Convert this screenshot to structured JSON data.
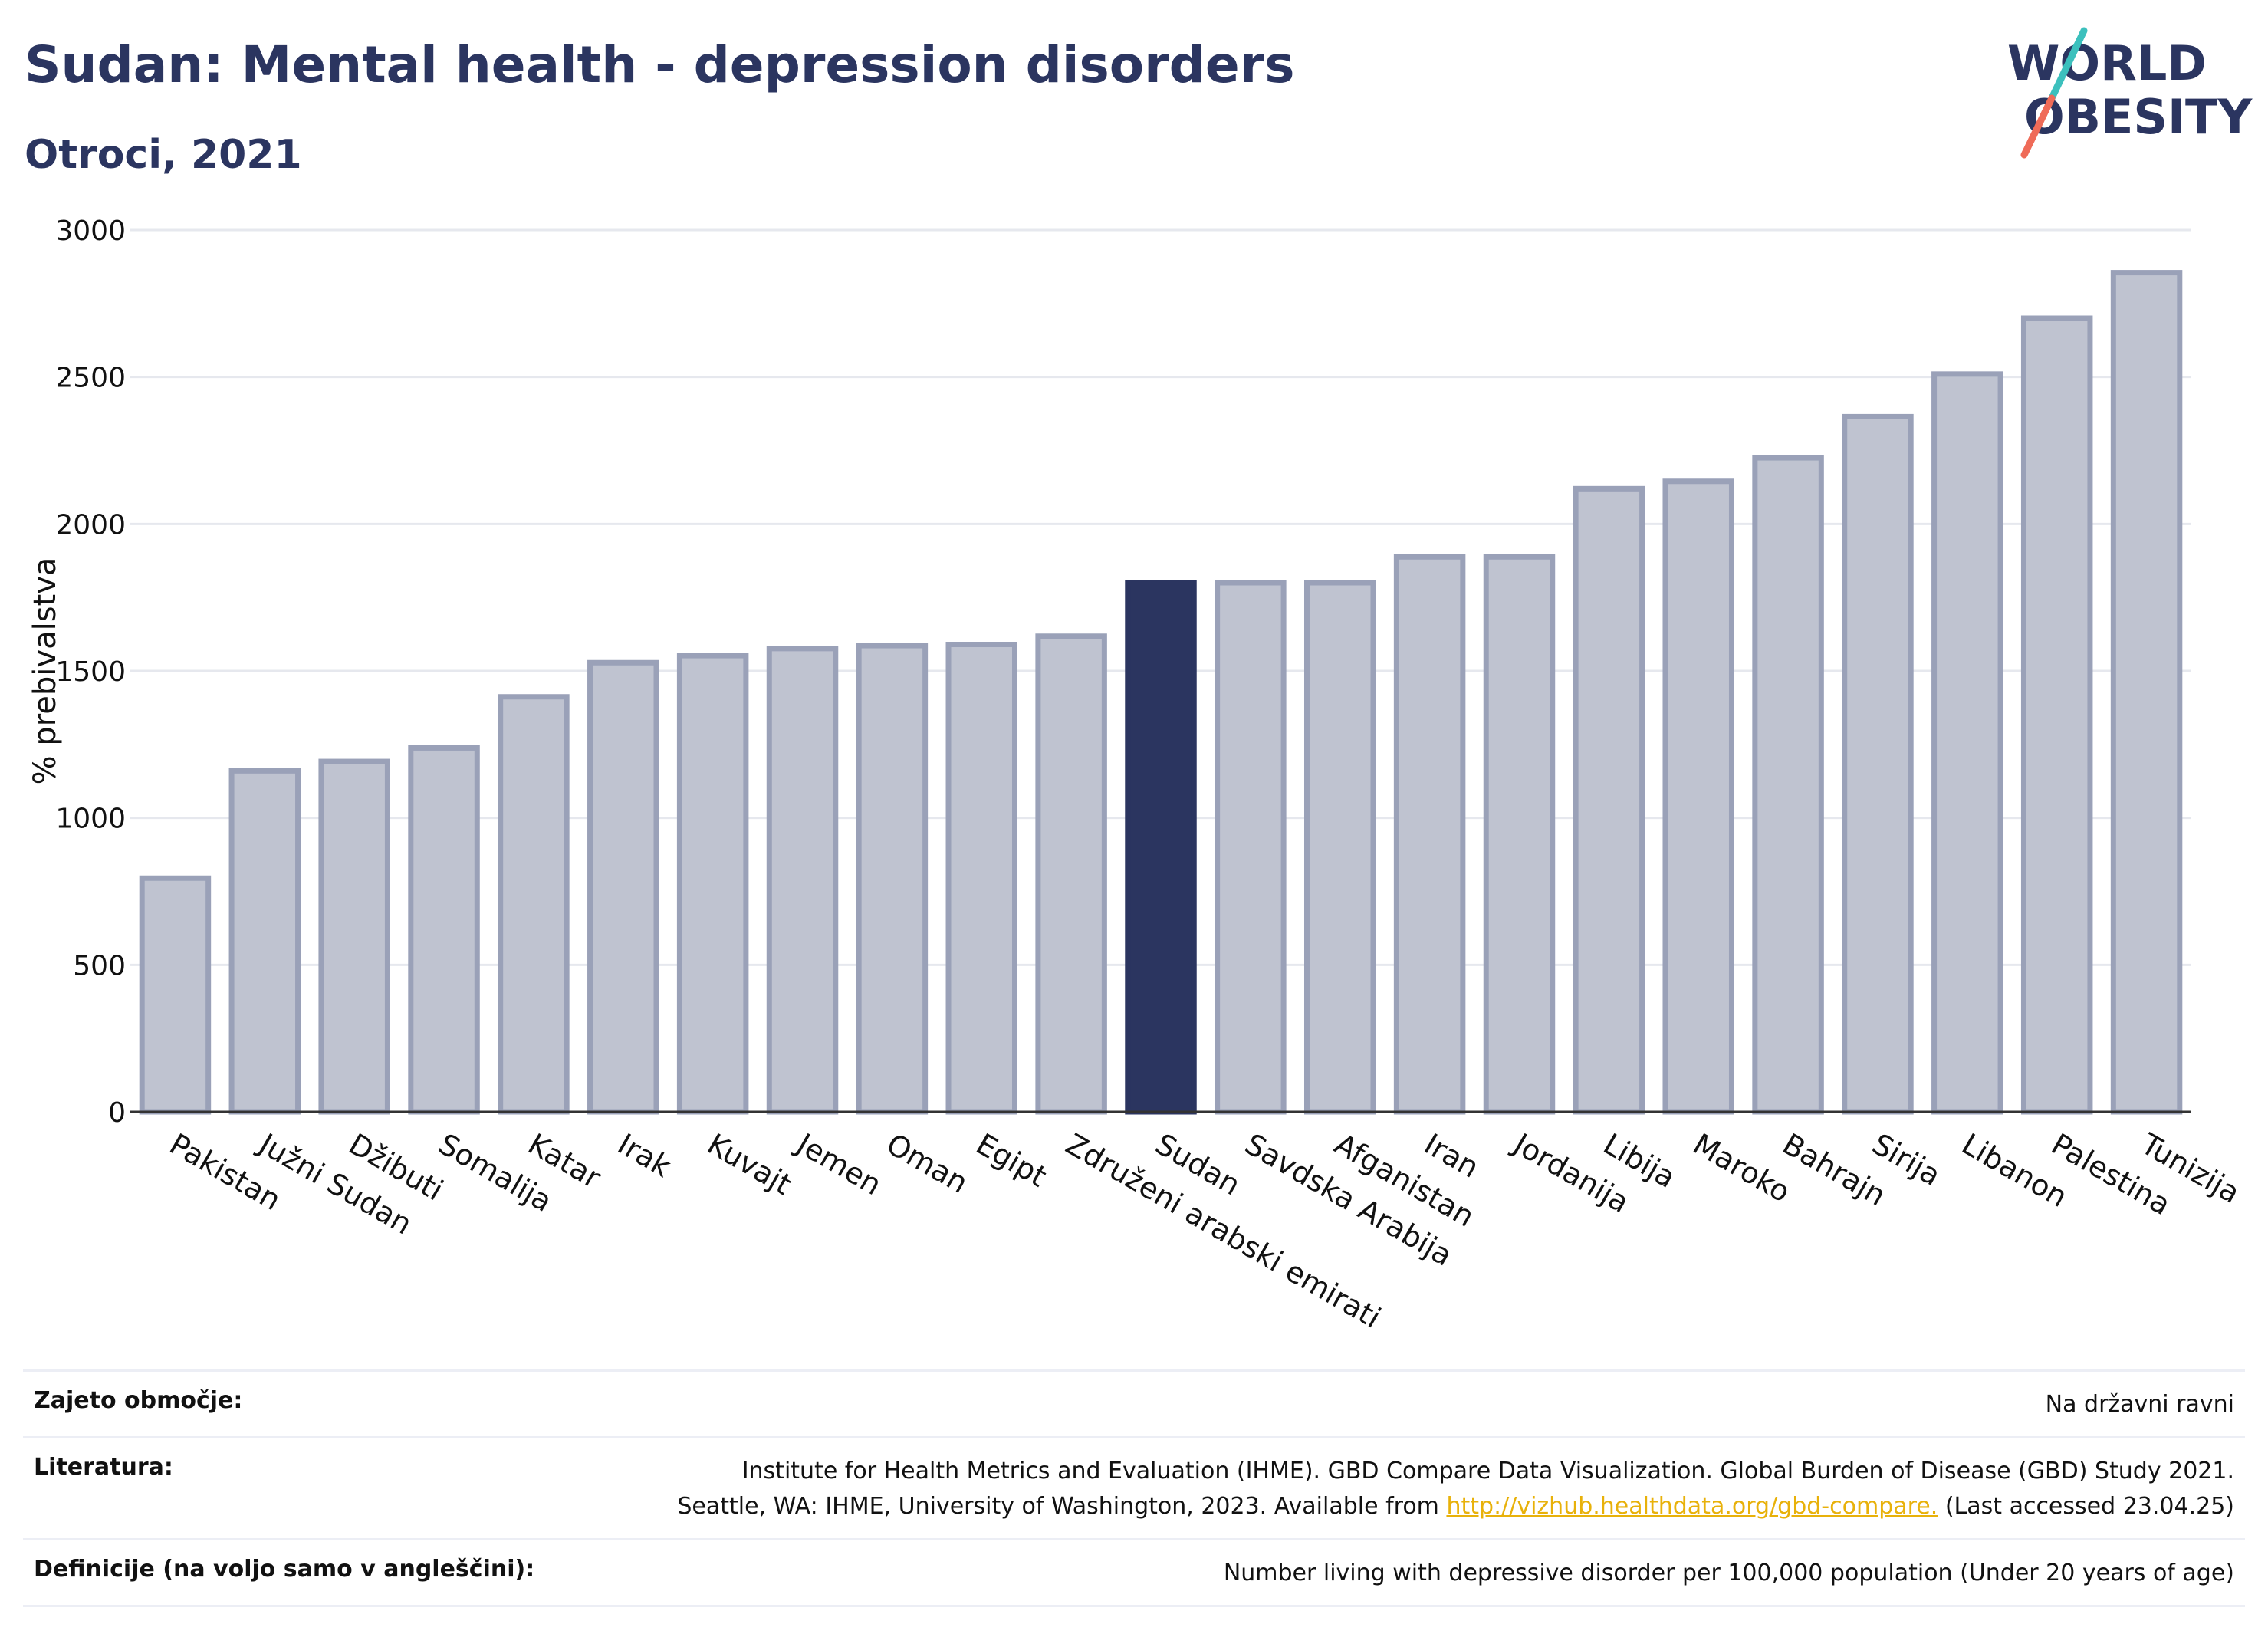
{
  "header": {
    "title": "Sudan: Mental health - depression disorders",
    "subtitle": "Otroci, 2021"
  },
  "logo": {
    "line1": "WORLD",
    "line2": "OBESITY",
    "colors": {
      "text": "#2b3560",
      "stroke_top": "#3cc0bd",
      "stroke_bottom": "#ef6b58"
    }
  },
  "colors": {
    "bar": "#bfc3d0",
    "bar_border": "#9aa1b8",
    "highlight": "#2b3560",
    "grid": "#e6e8ee",
    "axis": "#333333"
  },
  "chart_data": {
    "type": "bar",
    "title": "Sudan: Mental health - depression disorders",
    "subtitle": "Otroci, 2021",
    "ylabel": "% prebivalstva",
    "xlabel": "",
    "ylim": [
      0,
      3000
    ],
    "yticks": [
      0,
      500,
      1000,
      1500,
      2000,
      2500,
      3000
    ],
    "grid": true,
    "highlight": "Sudan",
    "categories": [
      "Pakistan",
      "Južni Sudan",
      "Džibuti",
      "Somalija",
      "Katar",
      "Irak",
      "Kuvajt",
      "Jemen",
      "Oman",
      "Egipt",
      "Združeni arabski emirati",
      "Sudan",
      "Savdska Arabija",
      "Afganistan",
      "Iran",
      "Jordanija",
      "Libija",
      "Maroko",
      "Bahrajn",
      "Sirija",
      "Libanon",
      "Palestina",
      "Tunizija"
    ],
    "values": [
      795,
      1160,
      1192,
      1238,
      1412,
      1528,
      1552,
      1576,
      1586,
      1590,
      1618,
      1800,
      1800,
      1800,
      1888,
      1888,
      2120,
      2145,
      2225,
      2365,
      2510,
      2700,
      2855
    ]
  },
  "info": {
    "rows": [
      {
        "key": "Zajeto območje:",
        "value": "Na državni ravni"
      },
      {
        "key": "Literatura:",
        "value_line1": "Institute for Health Metrics and Evaluation (IHME). GBD Compare Data Visualization. Global Burden of Disease (GBD) Study 2021.",
        "value_line2_pre": "Seattle, WA: IHME, University of Washington, 2023. Available from ",
        "link": "http://vizhub.healthdata.org/gbd-compare.",
        "value_line2_post": " (Last accessed 23.04.25)"
      },
      {
        "key": "Definicije (na voljo samo v angleščini):",
        "value": "Number living with depressive disorder per 100,000 population (Under 20 years of age)"
      }
    ]
  }
}
